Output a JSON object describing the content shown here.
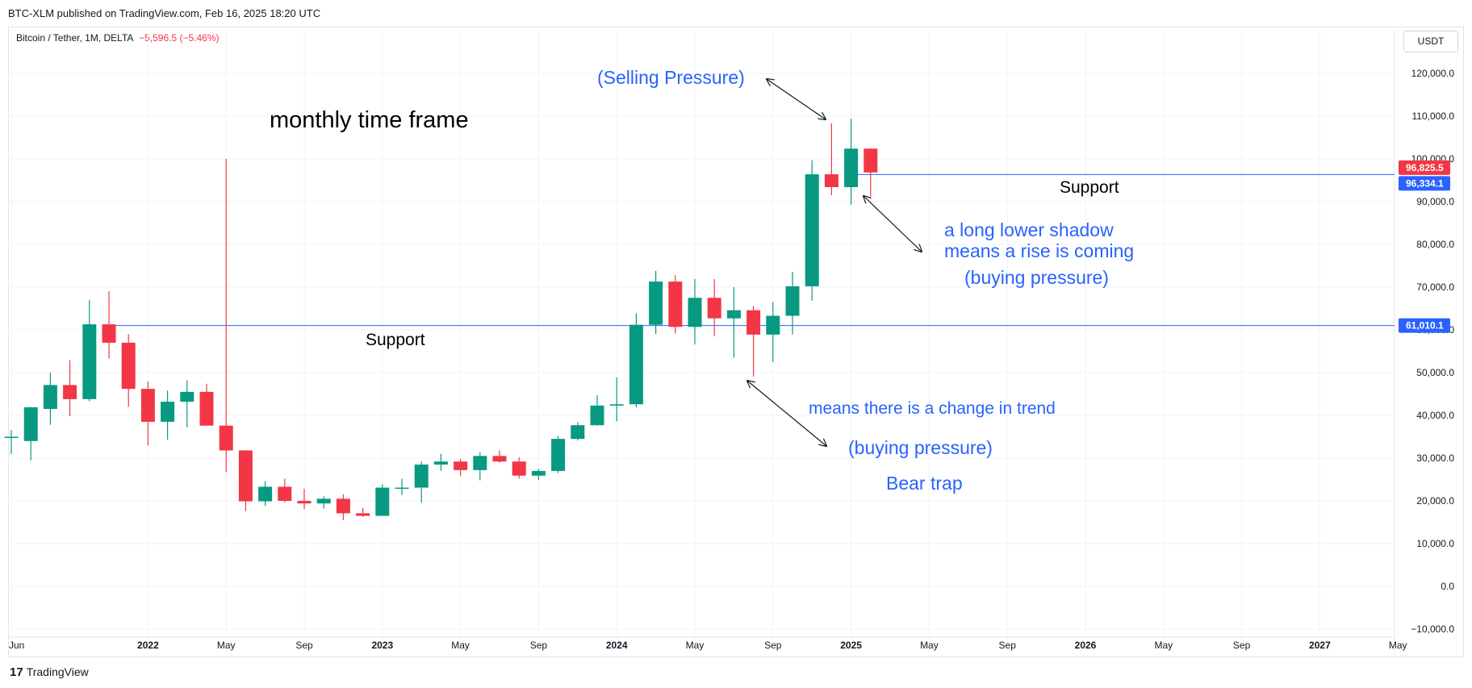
{
  "header": {
    "publish_text": "BTC-XLM published on TradingView.com, Feb 16, 2025 18:20 UTC",
    "symbol_text": "Bitcoin / Tether, 1M, DELTA",
    "change_text": "−5,596.5 (−5.46%)",
    "currency": "USDT"
  },
  "footer": {
    "logo_glyph": "17",
    "brand": "TradingView"
  },
  "colors": {
    "up": "#089981",
    "down": "#f23645",
    "annotation": "#2962ff",
    "grid": "#f0f3fa"
  },
  "chart_data": {
    "type": "candlestick",
    "title": "",
    "interval": "1M",
    "ylim": [
      -10000,
      125000
    ],
    "y_ticks": [
      -10000,
      0,
      10000,
      20000,
      30000,
      40000,
      50000,
      60000,
      70000,
      80000,
      90000,
      100000,
      110000,
      120000
    ],
    "y_tick_labels": [
      "−10,000.0",
      "0.0",
      "10,000.0",
      "20,000.0",
      "30,000.0",
      "40,000.0",
      "50,000.0",
      "60,000.0",
      "70,000.0",
      "80,000.0",
      "90,000.0",
      "100,000.0",
      "110,000.0",
      "120,000.0"
    ],
    "x_start_month": "2021-06",
    "x_end_month": "2027-06",
    "x_ticks": [
      {
        "month": "2021-06",
        "label": "Jun",
        "bold": false
      },
      {
        "month": "2022-01",
        "label": "2022",
        "bold": true
      },
      {
        "month": "2022-05",
        "label": "May",
        "bold": false
      },
      {
        "month": "2022-09",
        "label": "Sep",
        "bold": false
      },
      {
        "month": "2023-01",
        "label": "2023",
        "bold": true
      },
      {
        "month": "2023-05",
        "label": "May",
        "bold": false
      },
      {
        "month": "2023-09",
        "label": "Sep",
        "bold": false
      },
      {
        "month": "2024-01",
        "label": "2024",
        "bold": true
      },
      {
        "month": "2024-05",
        "label": "May",
        "bold": false
      },
      {
        "month": "2024-09",
        "label": "Sep",
        "bold": false
      },
      {
        "month": "2025-01",
        "label": "2025",
        "bold": true
      },
      {
        "month": "2025-05",
        "label": "May",
        "bold": false
      },
      {
        "month": "2025-09",
        "label": "Sep",
        "bold": false
      },
      {
        "month": "2026-01",
        "label": "2026",
        "bold": true
      },
      {
        "month": "2026-05",
        "label": "May",
        "bold": false
      },
      {
        "month": "2026-09",
        "label": "Sep",
        "bold": false
      },
      {
        "month": "2027-01",
        "label": "2027",
        "bold": true
      },
      {
        "month": "2027-05",
        "label": "May",
        "bold": false
      }
    ],
    "candles": [
      {
        "month": "2021-06",
        "o": 35000,
        "h": 36500,
        "l": 31000,
        "c": 35000
      },
      {
        "month": "2021-07",
        "o": 34000,
        "h": 42000,
        "l": 29500,
        "c": 41900
      },
      {
        "month": "2021-08",
        "o": 41500,
        "h": 50000,
        "l": 37800,
        "c": 47100
      },
      {
        "month": "2021-09",
        "o": 47100,
        "h": 52900,
        "l": 39800,
        "c": 43800
      },
      {
        "month": "2021-10",
        "o": 43800,
        "h": 67000,
        "l": 43300,
        "c": 61300
      },
      {
        "month": "2021-11",
        "o": 61300,
        "h": 69000,
        "l": 53300,
        "c": 57000
      },
      {
        "month": "2021-12",
        "o": 57000,
        "h": 59000,
        "l": 42000,
        "c": 46200
      },
      {
        "month": "2022-01",
        "o": 46200,
        "h": 47900,
        "l": 33000,
        "c": 38500
      },
      {
        "month": "2022-02",
        "o": 38500,
        "h": 45800,
        "l": 34300,
        "c": 43200
      },
      {
        "month": "2022-03",
        "o": 43200,
        "h": 48200,
        "l": 37200,
        "c": 45500
      },
      {
        "month": "2022-04",
        "o": 45500,
        "h": 47400,
        "l": 37700,
        "c": 37600
      },
      {
        "month": "2022-05",
        "o": 37600,
        "h": 100000,
        "l": 26700,
        "c": 31800
      },
      {
        "month": "2022-06",
        "o": 31800,
        "h": 31900,
        "l": 17600,
        "c": 19900
      },
      {
        "month": "2022-07",
        "o": 19900,
        "h": 24600,
        "l": 18800,
        "c": 23300
      },
      {
        "month": "2022-08",
        "o": 23300,
        "h": 25200,
        "l": 19600,
        "c": 20000
      },
      {
        "month": "2022-09",
        "o": 20000,
        "h": 22800,
        "l": 18100,
        "c": 19400
      },
      {
        "month": "2022-10",
        "o": 19400,
        "h": 21100,
        "l": 18200,
        "c": 20500
      },
      {
        "month": "2022-11",
        "o": 20500,
        "h": 21500,
        "l": 15500,
        "c": 17100
      },
      {
        "month": "2022-12",
        "o": 17100,
        "h": 18400,
        "l": 16300,
        "c": 16500
      },
      {
        "month": "2023-01",
        "o": 16500,
        "h": 23900,
        "l": 16500,
        "c": 23100
      },
      {
        "month": "2023-02",
        "o": 23100,
        "h": 25200,
        "l": 21400,
        "c": 23100
      },
      {
        "month": "2023-03",
        "o": 23100,
        "h": 29200,
        "l": 19600,
        "c": 28500
      },
      {
        "month": "2023-04",
        "o": 28500,
        "h": 31000,
        "l": 27000,
        "c": 29200
      },
      {
        "month": "2023-05",
        "o": 29200,
        "h": 29800,
        "l": 25800,
        "c": 27200
      },
      {
        "month": "2023-06",
        "o": 27200,
        "h": 31400,
        "l": 24800,
        "c": 30500
      },
      {
        "month": "2023-07",
        "o": 30500,
        "h": 31800,
        "l": 28900,
        "c": 29200
      },
      {
        "month": "2023-08",
        "o": 29200,
        "h": 30200,
        "l": 25200,
        "c": 25900
      },
      {
        "month": "2023-09",
        "o": 25900,
        "h": 27500,
        "l": 24900,
        "c": 27000
      },
      {
        "month": "2023-10",
        "o": 27000,
        "h": 35200,
        "l": 26500,
        "c": 34500
      },
      {
        "month": "2023-11",
        "o": 34500,
        "h": 38400,
        "l": 34100,
        "c": 37700
      },
      {
        "month": "2023-12",
        "o": 37700,
        "h": 44700,
        "l": 37600,
        "c": 42300
      },
      {
        "month": "2024-01",
        "o": 42300,
        "h": 48900,
        "l": 38600,
        "c": 42600
      },
      {
        "month": "2024-02",
        "o": 42600,
        "h": 63900,
        "l": 41900,
        "c": 61200
      },
      {
        "month": "2024-03",
        "o": 61200,
        "h": 73800,
        "l": 59000,
        "c": 71300
      },
      {
        "month": "2024-04",
        "o": 71300,
        "h": 72800,
        "l": 59200,
        "c": 60700
      },
      {
        "month": "2024-05",
        "o": 60700,
        "h": 71900,
        "l": 56600,
        "c": 67500
      },
      {
        "month": "2024-06",
        "o": 67500,
        "h": 71900,
        "l": 58500,
        "c": 62700
      },
      {
        "month": "2024-07",
        "o": 62700,
        "h": 70000,
        "l": 53500,
        "c": 64600
      },
      {
        "month": "2024-08",
        "o": 64600,
        "h": 65600,
        "l": 49100,
        "c": 58900
      },
      {
        "month": "2024-09",
        "o": 58900,
        "h": 66500,
        "l": 52500,
        "c": 63300
      },
      {
        "month": "2024-10",
        "o": 63300,
        "h": 73600,
        "l": 58900,
        "c": 70200
      },
      {
        "month": "2024-11",
        "o": 70200,
        "h": 99700,
        "l": 66800,
        "c": 96400
      },
      {
        "month": "2024-12",
        "o": 96400,
        "h": 108300,
        "l": 91500,
        "c": 93400
      },
      {
        "month": "2025-01",
        "o": 93400,
        "h": 109400,
        "l": 89300,
        "c": 102400
      },
      {
        "month": "2025-02",
        "o": 102400,
        "h": 102500,
        "l": 91200,
        "c": 96825.5
      }
    ],
    "horizontal_lines": [
      {
        "value": 96334.1,
        "label": "96,334.1",
        "text": "Support"
      },
      {
        "value": 61010.1,
        "label": "61,010.1",
        "text": "Support"
      }
    ],
    "last_price": {
      "value": 96825.5,
      "label": "96,825.5"
    },
    "annotations": {
      "timeframe": "monthly time frame",
      "selling": "(Selling Pressure)",
      "shadow_1": "a long lower shadow",
      "shadow_2": "means a rise is coming",
      "buying_1": "(buying pressure)",
      "trend": "means there is a change in trend",
      "buying_2": "(buying pressure)",
      "bear_trap": "Bear trap"
    }
  }
}
